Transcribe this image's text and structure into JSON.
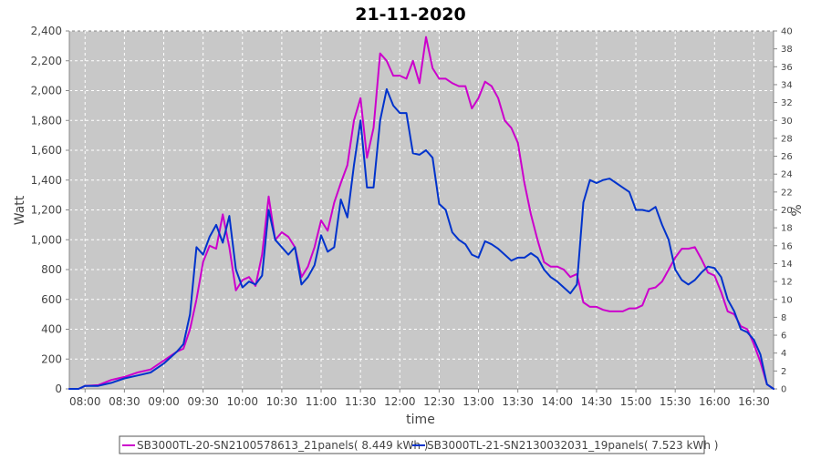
{
  "chart_data": {
    "type": "line",
    "title": "21-11-2020",
    "xlabel": "time",
    "ylabel": "Watt",
    "y2label": "%",
    "ylim": [
      0,
      2400
    ],
    "y2lim": [
      0,
      40
    ],
    "xlim": [
      "07:48",
      "16:45"
    ],
    "grid": true,
    "legend_position": "bottom",
    "background_color": "#c8c8c8",
    "x_ticks": [
      "08:00",
      "08:30",
      "09:00",
      "09:30",
      "10:00",
      "10:30",
      "11:00",
      "11:30",
      "12:00",
      "12:30",
      "13:00",
      "13:30",
      "14:00",
      "14:30",
      "15:00",
      "15:30",
      "16:00",
      "16:30"
    ],
    "y_ticks": [
      0,
      200,
      400,
      600,
      800,
      1000,
      1200,
      1400,
      1600,
      1800,
      2000,
      2200,
      2400
    ],
    "y_tick_labels": [
      "0",
      "200",
      "400",
      "600",
      "800",
      "1,000",
      "1,200",
      "1,400",
      "1,600",
      "1,800",
      "2,000",
      "2,200",
      "2,400"
    ],
    "y2_ticks": [
      0,
      2,
      4,
      6,
      8,
      10,
      12,
      14,
      16,
      18,
      20,
      22,
      24,
      26,
      28,
      30,
      32,
      34,
      36,
      38,
      40
    ],
    "series": [
      {
        "name": "SB3000TL-20-SN2100578613_21panels( 8.449 kWh )",
        "color": "#cc00cc",
        "points": [
          [
            "07:48",
            0
          ],
          [
            "07:55",
            0
          ],
          [
            "08:00",
            20
          ],
          [
            "08:10",
            25
          ],
          [
            "08:20",
            60
          ],
          [
            "08:30",
            80
          ],
          [
            "08:40",
            110
          ],
          [
            "08:50",
            130
          ],
          [
            "09:00",
            190
          ],
          [
            "09:10",
            250
          ],
          [
            "09:15",
            270
          ],
          [
            "09:20",
            400
          ],
          [
            "09:25",
            600
          ],
          [
            "09:30",
            850
          ],
          [
            "09:35",
            960
          ],
          [
            "09:40",
            940
          ],
          [
            "09:45",
            1170
          ],
          [
            "09:50",
            950
          ],
          [
            "09:55",
            660
          ],
          [
            "10:00",
            730
          ],
          [
            "10:05",
            750
          ],
          [
            "10:10",
            690
          ],
          [
            "10:15",
            900
          ],
          [
            "10:20",
            1290
          ],
          [
            "10:25",
            1000
          ],
          [
            "10:30",
            1050
          ],
          [
            "10:35",
            1020
          ],
          [
            "10:40",
            950
          ],
          [
            "10:45",
            750
          ],
          [
            "10:50",
            820
          ],
          [
            "10:55",
            950
          ],
          [
            "11:00",
            1130
          ],
          [
            "11:05",
            1060
          ],
          [
            "11:10",
            1250
          ],
          [
            "11:15",
            1380
          ],
          [
            "11:20",
            1500
          ],
          [
            "11:25",
            1800
          ],
          [
            "11:30",
            1950
          ],
          [
            "11:35",
            1550
          ],
          [
            "11:40",
            1750
          ],
          [
            "11:45",
            2250
          ],
          [
            "11:50",
            2200
          ],
          [
            "11:55",
            2100
          ],
          [
            "12:00",
            2100
          ],
          [
            "12:05",
            2080
          ],
          [
            "12:10",
            2200
          ],
          [
            "12:15",
            2050
          ],
          [
            "12:20",
            2360
          ],
          [
            "12:25",
            2150
          ],
          [
            "12:30",
            2080
          ],
          [
            "12:35",
            2080
          ],
          [
            "12:40",
            2050
          ],
          [
            "12:45",
            2030
          ],
          [
            "12:50",
            2030
          ],
          [
            "12:55",
            1880
          ],
          [
            "13:00",
            1950
          ],
          [
            "13:05",
            2060
          ],
          [
            "13:10",
            2030
          ],
          [
            "13:15",
            1950
          ],
          [
            "13:20",
            1800
          ],
          [
            "13:25",
            1750
          ],
          [
            "13:30",
            1650
          ],
          [
            "13:35",
            1380
          ],
          [
            "13:40",
            1170
          ],
          [
            "13:45",
            1000
          ],
          [
            "13:50",
            850
          ],
          [
            "13:55",
            820
          ],
          [
            "14:00",
            820
          ],
          [
            "14:05",
            800
          ],
          [
            "14:10",
            750
          ],
          [
            "14:15",
            770
          ],
          [
            "14:20",
            580
          ],
          [
            "14:25",
            550
          ],
          [
            "14:30",
            550
          ],
          [
            "14:35",
            530
          ],
          [
            "14:40",
            520
          ],
          [
            "14:45",
            520
          ],
          [
            "14:50",
            520
          ],
          [
            "14:55",
            540
          ],
          [
            "15:00",
            540
          ],
          [
            "15:05",
            560
          ],
          [
            "15:10",
            670
          ],
          [
            "15:15",
            680
          ],
          [
            "15:20",
            720
          ],
          [
            "15:25",
            800
          ],
          [
            "15:30",
            880
          ],
          [
            "15:35",
            940
          ],
          [
            "15:40",
            940
          ],
          [
            "15:45",
            950
          ],
          [
            "15:50",
            870
          ],
          [
            "15:55",
            780
          ],
          [
            "16:00",
            760
          ],
          [
            "16:05",
            650
          ],
          [
            "16:10",
            520
          ],
          [
            "16:15",
            500
          ],
          [
            "16:20",
            420
          ],
          [
            "16:25",
            400
          ],
          [
            "16:30",
            300
          ],
          [
            "16:35",
            180
          ],
          [
            "16:40",
            30
          ],
          [
            "16:45",
            0
          ]
        ]
      },
      {
        "name": "SB3000TL-21-SN2130032031_19panels( 7.523 kWh )",
        "color": "#0033cc",
        "points": [
          [
            "07:48",
            0
          ],
          [
            "07:55",
            0
          ],
          [
            "08:00",
            20
          ],
          [
            "08:10",
            20
          ],
          [
            "08:20",
            40
          ],
          [
            "08:30",
            70
          ],
          [
            "08:40",
            90
          ],
          [
            "08:50",
            110
          ],
          [
            "09:00",
            170
          ],
          [
            "09:10",
            250
          ],
          [
            "09:15",
            300
          ],
          [
            "09:20",
            500
          ],
          [
            "09:25",
            950
          ],
          [
            "09:30",
            900
          ],
          [
            "09:35",
            1020
          ],
          [
            "09:40",
            1100
          ],
          [
            "09:45",
            980
          ],
          [
            "09:50",
            1160
          ],
          [
            "09:55",
            800
          ],
          [
            "10:00",
            680
          ],
          [
            "10:05",
            720
          ],
          [
            "10:10",
            700
          ],
          [
            "10:15",
            760
          ],
          [
            "10:20",
            1200
          ],
          [
            "10:25",
            1000
          ],
          [
            "10:30",
            950
          ],
          [
            "10:35",
            900
          ],
          [
            "10:40",
            950
          ],
          [
            "10:45",
            700
          ],
          [
            "10:50",
            750
          ],
          [
            "10:55",
            830
          ],
          [
            "11:00",
            1030
          ],
          [
            "11:05",
            920
          ],
          [
            "11:10",
            950
          ],
          [
            "11:15",
            1270
          ],
          [
            "11:20",
            1150
          ],
          [
            "11:25",
            1500
          ],
          [
            "11:30",
            1800
          ],
          [
            "11:35",
            1350
          ],
          [
            "11:40",
            1350
          ],
          [
            "11:45",
            1800
          ],
          [
            "11:50",
            2010
          ],
          [
            "11:55",
            1900
          ],
          [
            "12:00",
            1850
          ],
          [
            "12:05",
            1850
          ],
          [
            "12:10",
            1580
          ],
          [
            "12:15",
            1570
          ],
          [
            "12:20",
            1600
          ],
          [
            "12:25",
            1550
          ],
          [
            "12:30",
            1240
          ],
          [
            "12:35",
            1200
          ],
          [
            "12:40",
            1050
          ],
          [
            "12:45",
            1000
          ],
          [
            "12:50",
            970
          ],
          [
            "12:55",
            900
          ],
          [
            "13:00",
            880
          ],
          [
            "13:05",
            990
          ],
          [
            "13:10",
            970
          ],
          [
            "13:15",
            940
          ],
          [
            "13:20",
            900
          ],
          [
            "13:25",
            860
          ],
          [
            "13:30",
            880
          ],
          [
            "13:35",
            880
          ],
          [
            "13:40",
            910
          ],
          [
            "13:45",
            880
          ],
          [
            "13:50",
            800
          ],
          [
            "13:55",
            750
          ],
          [
            "14:00",
            720
          ],
          [
            "14:05",
            680
          ],
          [
            "14:10",
            640
          ],
          [
            "14:15",
            700
          ],
          [
            "14:20",
            1250
          ],
          [
            "14:25",
            1400
          ],
          [
            "14:30",
            1380
          ],
          [
            "14:35",
            1400
          ],
          [
            "14:40",
            1410
          ],
          [
            "14:45",
            1380
          ],
          [
            "14:50",
            1350
          ],
          [
            "14:55",
            1320
          ],
          [
            "15:00",
            1200
          ],
          [
            "15:05",
            1200
          ],
          [
            "15:10",
            1190
          ],
          [
            "15:15",
            1220
          ],
          [
            "15:20",
            1100
          ],
          [
            "15:25",
            1000
          ],
          [
            "15:30",
            800
          ],
          [
            "15:35",
            730
          ],
          [
            "15:40",
            700
          ],
          [
            "15:45",
            730
          ],
          [
            "15:50",
            780
          ],
          [
            "15:55",
            820
          ],
          [
            "16:00",
            810
          ],
          [
            "16:05",
            750
          ],
          [
            "16:10",
            600
          ],
          [
            "16:15",
            520
          ],
          [
            "16:20",
            400
          ],
          [
            "16:25",
            380
          ],
          [
            "16:30",
            330
          ],
          [
            "16:35",
            230
          ],
          [
            "16:40",
            30
          ],
          [
            "16:45",
            0
          ]
        ]
      }
    ]
  }
}
